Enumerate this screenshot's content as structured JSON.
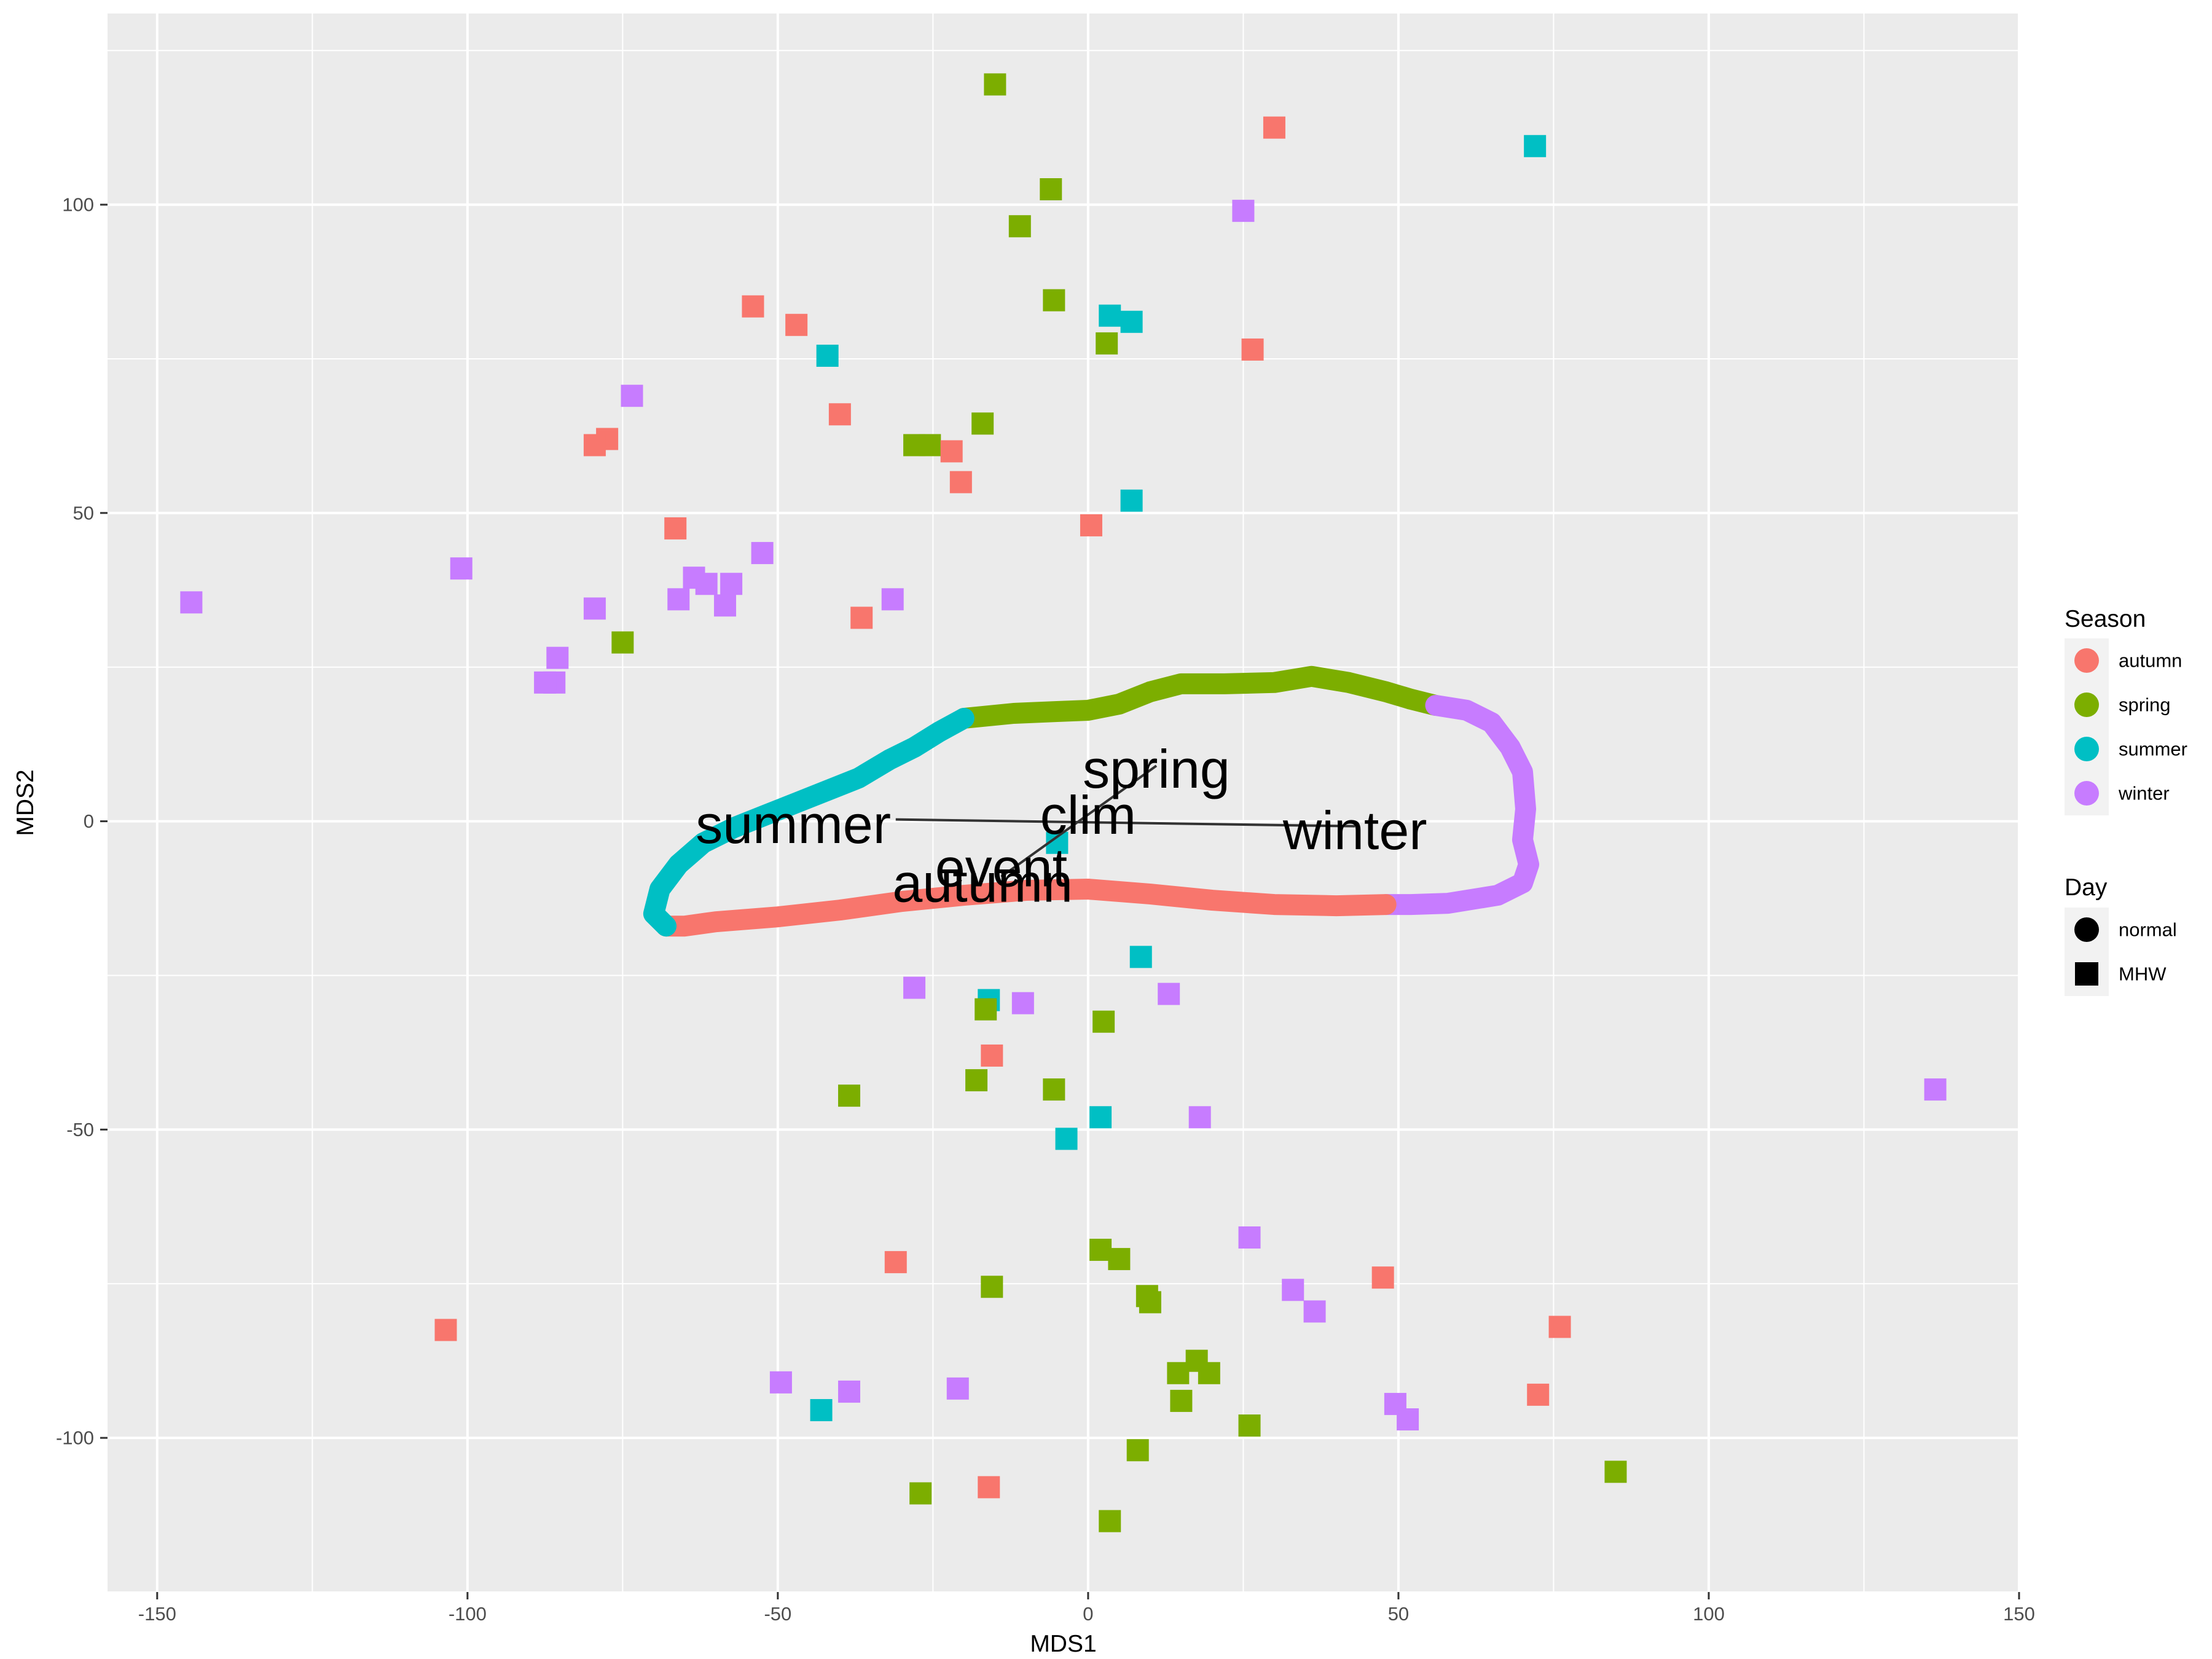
{
  "chart_data": {
    "type": "scatter",
    "xlabel": "MDS1",
    "ylabel": "MDS2",
    "xlim": [
      -158,
      150
    ],
    "ylim": [
      -125,
      131
    ],
    "x_ticks": [
      -150,
      -100,
      -50,
      0,
      50,
      100,
      150
    ],
    "x_tick_labels": [
      "-150",
      "-100",
      "-50",
      "0",
      "50",
      "100",
      "150"
    ],
    "y_ticks": [
      -100,
      -50,
      0,
      50,
      100
    ],
    "y_tick_labels": [
      "-100",
      "-50",
      "0",
      "50",
      "100"
    ],
    "grid": true,
    "legend_placement": "right",
    "colors": {
      "autumn": "#F8766D",
      "spring": "#7CAE00",
      "summer": "#00BFC4",
      "winter": "#C77CFF",
      "panel": "#EBEBEB",
      "grid": "#FFFFFF"
    },
    "legend": {
      "season_title": "Season",
      "season_items": [
        {
          "key": "autumn",
          "label": "autumn"
        },
        {
          "key": "spring",
          "label": "spring"
        },
        {
          "key": "summer",
          "label": "summer"
        },
        {
          "key": "winter",
          "label": "winter"
        }
      ],
      "day_title": "Day",
      "day_items": [
        {
          "shape": "circle",
          "label": "normal"
        },
        {
          "shape": "square",
          "label": "MHW"
        }
      ]
    },
    "trajectory": {
      "day": "normal",
      "segments": [
        {
          "season": "spring",
          "points": [
            [
              -20,
              16.7
            ],
            [
              -12,
              17.5
            ],
            [
              -5,
              17.8
            ],
            [
              0,
              18
            ],
            [
              5,
              19
            ],
            [
              10,
              21
            ],
            [
              15,
              22.3
            ],
            [
              22,
              22.3
            ],
            [
              30,
              22.5
            ],
            [
              36,
              23.5
            ],
            [
              42,
              22.5
            ],
            [
              48,
              21
            ],
            [
              52,
              19.8
            ],
            [
              56,
              18.8
            ]
          ]
        },
        {
          "season": "winter",
          "points": [
            [
              56,
              18.8
            ],
            [
              61,
              18
            ],
            [
              65,
              16
            ],
            [
              68,
              12
            ],
            [
              70,
              8
            ],
            [
              70.5,
              2
            ],
            [
              70,
              -3
            ],
            [
              71,
              -7
            ],
            [
              70,
              -10
            ],
            [
              66,
              -12
            ],
            [
              58,
              -13.3
            ],
            [
              52,
              -13.5
            ],
            [
              48,
              -13.5
            ]
          ]
        },
        {
          "season": "autumn",
          "points": [
            [
              48,
              -13.5
            ],
            [
              40,
              -13.7
            ],
            [
              30,
              -13.5
            ],
            [
              20,
              -12.8
            ],
            [
              10,
              -11.8
            ],
            [
              0,
              -11
            ],
            [
              -10,
              -11.2
            ],
            [
              -20,
              -12
            ],
            [
              -30,
              -13
            ],
            [
              -40,
              -14.4
            ],
            [
              -50,
              -15.5
            ],
            [
              -60,
              -16.3
            ],
            [
              -65,
              -17
            ],
            [
              -68,
              -17
            ]
          ]
        },
        {
          "season": "summer",
          "points": [
            [
              -68,
              -17
            ],
            [
              -70,
              -15
            ],
            [
              -69,
              -11
            ],
            [
              -66,
              -7
            ],
            [
              -62,
              -3.5
            ],
            [
              -57,
              -1
            ],
            [
              -52,
              1
            ],
            [
              -47,
              3
            ],
            [
              -42,
              5
            ],
            [
              -37,
              7
            ],
            [
              -32,
              10
            ],
            [
              -28,
              12
            ],
            [
              -24,
              14.5
            ],
            [
              -20,
              16.7
            ]
          ]
        }
      ]
    },
    "centroids": [
      {
        "label": "summer",
        "x": -47.5,
        "y": -0.5
      },
      {
        "label": "spring",
        "x": 11,
        "y": 8.5
      },
      {
        "label": "clim",
        "x": 0,
        "y": 1
      },
      {
        "label": "winter",
        "x": 43,
        "y": -1.5
      },
      {
        "label": "event",
        "x": -14,
        "y": -7.5
      },
      {
        "label": "autumn",
        "x": -17,
        "y": -10
      }
    ],
    "centroid_lines": [
      {
        "from": [
          -31,
          0.3
        ],
        "to": [
          43,
          -0.8
        ]
      },
      {
        "from": [
          -14,
          -9
        ],
        "to": [
          11,
          9
        ]
      }
    ],
    "points": [
      {
        "season": "spring",
        "day": "MHW",
        "x": -15,
        "y": 119.5
      },
      {
        "season": "autumn",
        "day": "MHW",
        "x": 30,
        "y": 112.5
      },
      {
        "season": "summer",
        "day": "MHW",
        "x": 72,
        "y": 109.5
      },
      {
        "season": "spring",
        "day": "MHW",
        "x": -6,
        "y": 102.5
      },
      {
        "season": "winter",
        "day": "MHW",
        "x": 25,
        "y": 99
      },
      {
        "season": "spring",
        "day": "MHW",
        "x": -11,
        "y": 96.5
      },
      {
        "season": "spring",
        "day": "MHW",
        "x": -5.5,
        "y": 84.5
      },
      {
        "season": "autumn",
        "day": "MHW",
        "x": -54,
        "y": 83.5
      },
      {
        "season": "summer",
        "day": "MHW",
        "x": 3.5,
        "y": 82
      },
      {
        "season": "summer",
        "day": "MHW",
        "x": 7,
        "y": 81
      },
      {
        "season": "autumn",
        "day": "MHW",
        "x": -47,
        "y": 80.5
      },
      {
        "season": "spring",
        "day": "MHW",
        "x": 3,
        "y": 77.5
      },
      {
        "season": "autumn",
        "day": "MHW",
        "x": 26.5,
        "y": 76.5
      },
      {
        "season": "summer",
        "day": "MHW",
        "x": -42,
        "y": 75.5
      },
      {
        "season": "winter",
        "day": "MHW",
        "x": -73.5,
        "y": 69
      },
      {
        "season": "autumn",
        "day": "MHW",
        "x": -40,
        "y": 66
      },
      {
        "season": "spring",
        "day": "MHW",
        "x": -17,
        "y": 64.5
      },
      {
        "season": "autumn",
        "day": "MHW",
        "x": -77.5,
        "y": 62
      },
      {
        "season": "autumn",
        "day": "MHW",
        "x": -79.5,
        "y": 61
      },
      {
        "season": "spring",
        "day": "MHW",
        "x": -28,
        "y": 61
      },
      {
        "season": "spring",
        "day": "MHW",
        "x": -25.5,
        "y": 61
      },
      {
        "season": "autumn",
        "day": "MHW",
        "x": -22,
        "y": 60
      },
      {
        "season": "autumn",
        "day": "MHW",
        "x": -20.5,
        "y": 55
      },
      {
        "season": "summer",
        "day": "MHW",
        "x": 7,
        "y": 52
      },
      {
        "season": "autumn",
        "day": "MHW",
        "x": 0.5,
        "y": 48
      },
      {
        "season": "autumn",
        "day": "MHW",
        "x": -66.5,
        "y": 47.5
      },
      {
        "season": "winter",
        "day": "MHW",
        "x": -52.5,
        "y": 43.5
      },
      {
        "season": "winter",
        "day": "MHW",
        "x": -101,
        "y": 41
      },
      {
        "season": "winter",
        "day": "MHW",
        "x": -63.5,
        "y": 39.5
      },
      {
        "season": "winter",
        "day": "MHW",
        "x": -61.5,
        "y": 38.5
      },
      {
        "season": "winter",
        "day": "MHW",
        "x": -57.5,
        "y": 38.5
      },
      {
        "season": "winter",
        "day": "MHW",
        "x": -66,
        "y": 36
      },
      {
        "season": "winter",
        "day": "MHW",
        "x": -31.5,
        "y": 36
      },
      {
        "season": "winter",
        "day": "MHW",
        "x": -144.5,
        "y": 35.5
      },
      {
        "season": "winter",
        "day": "MHW",
        "x": -58.5,
        "y": 35
      },
      {
        "season": "winter",
        "day": "MHW",
        "x": -79.5,
        "y": 34.5
      },
      {
        "season": "autumn",
        "day": "MHW",
        "x": -36.5,
        "y": 33
      },
      {
        "season": "spring",
        "day": "MHW",
        "x": -75,
        "y": 29
      },
      {
        "season": "winter",
        "day": "MHW",
        "x": -85.5,
        "y": 26.5
      },
      {
        "season": "winter",
        "day": "MHW",
        "x": -86,
        "y": 22.5
      },
      {
        "season": "winter",
        "day": "MHW",
        "x": -87.5,
        "y": 22.5
      },
      {
        "season": "summer",
        "day": "MHW",
        "x": -5,
        "y": -3.5
      },
      {
        "season": "summer",
        "day": "MHW",
        "x": 8.5,
        "y": -22
      },
      {
        "season": "winter",
        "day": "MHW",
        "x": -28,
        "y": -27
      },
      {
        "season": "winter",
        "day": "MHW",
        "x": 13,
        "y": -28
      },
      {
        "season": "summer",
        "day": "MHW",
        "x": -16,
        "y": -29
      },
      {
        "season": "winter",
        "day": "MHW",
        "x": -10.5,
        "y": -29.5
      },
      {
        "season": "spring",
        "day": "MHW",
        "x": -16.5,
        "y": -30.5
      },
      {
        "season": "spring",
        "day": "MHW",
        "x": 2.5,
        "y": -32.5
      },
      {
        "season": "autumn",
        "day": "MHW",
        "x": -15.5,
        "y": -38
      },
      {
        "season": "spring",
        "day": "MHW",
        "x": -18,
        "y": -42
      },
      {
        "season": "spring",
        "day": "MHW",
        "x": -5.5,
        "y": -43.5
      },
      {
        "season": "winter",
        "day": "MHW",
        "x": 136.5,
        "y": -43.5
      },
      {
        "season": "spring",
        "day": "MHW",
        "x": -38.5,
        "y": -44.5
      },
      {
        "season": "summer",
        "day": "MHW",
        "x": 2,
        "y": -48
      },
      {
        "season": "winter",
        "day": "MHW",
        "x": 18,
        "y": -48
      },
      {
        "season": "summer",
        "day": "MHW",
        "x": -3.5,
        "y": -51.5
      },
      {
        "season": "winter",
        "day": "MHW",
        "x": 26,
        "y": -67.5
      },
      {
        "season": "spring",
        "day": "MHW",
        "x": 2,
        "y": -69.5
      },
      {
        "season": "spring",
        "day": "MHW",
        "x": 5,
        "y": -71
      },
      {
        "season": "autumn",
        "day": "MHW",
        "x": -31,
        "y": -71.5
      },
      {
        "season": "autumn",
        "day": "MHW",
        "x": 47.5,
        "y": -74
      },
      {
        "season": "spring",
        "day": "MHW",
        "x": -15.5,
        "y": -75.5
      },
      {
        "season": "winter",
        "day": "MHW",
        "x": 33,
        "y": -76
      },
      {
        "season": "spring",
        "day": "MHW",
        "x": 9.5,
        "y": -77
      },
      {
        "season": "spring",
        "day": "MHW",
        "x": 10,
        "y": -78
      },
      {
        "season": "winter",
        "day": "MHW",
        "x": 36.5,
        "y": -79.5
      },
      {
        "season": "autumn",
        "day": "MHW",
        "x": 76,
        "y": -82
      },
      {
        "season": "autumn",
        "day": "MHW",
        "x": -103.5,
        "y": -82.5
      },
      {
        "season": "spring",
        "day": "MHW",
        "x": 17.5,
        "y": -87.5
      },
      {
        "season": "spring",
        "day": "MHW",
        "x": 14.5,
        "y": -89.5
      },
      {
        "season": "spring",
        "day": "MHW",
        "x": 19.5,
        "y": -89.5
      },
      {
        "season": "winter",
        "day": "MHW",
        "x": -49.5,
        "y": -91
      },
      {
        "season": "winter",
        "day": "MHW",
        "x": -21,
        "y": -92
      },
      {
        "season": "winter",
        "day": "MHW",
        "x": -38.5,
        "y": -92.5
      },
      {
        "season": "autumn",
        "day": "MHW",
        "x": 72.5,
        "y": -93
      },
      {
        "season": "spring",
        "day": "MHW",
        "x": 15,
        "y": -94
      },
      {
        "season": "winter",
        "day": "MHW",
        "x": 49.5,
        "y": -94.5
      },
      {
        "season": "summer",
        "day": "MHW",
        "x": -43,
        "y": -95.5
      },
      {
        "season": "winter",
        "day": "MHW",
        "x": 51.5,
        "y": -97
      },
      {
        "season": "spring",
        "day": "MHW",
        "x": 26,
        "y": -98
      },
      {
        "season": "spring",
        "day": "MHW",
        "x": 8,
        "y": -102
      },
      {
        "season": "spring",
        "day": "MHW",
        "x": 85,
        "y": -105.5
      },
      {
        "season": "autumn",
        "day": "MHW",
        "x": -16,
        "y": -108
      },
      {
        "season": "spring",
        "day": "MHW",
        "x": -27,
        "y": -109
      },
      {
        "season": "spring",
        "day": "MHW",
        "x": 3.5,
        "y": -113.5
      }
    ]
  }
}
